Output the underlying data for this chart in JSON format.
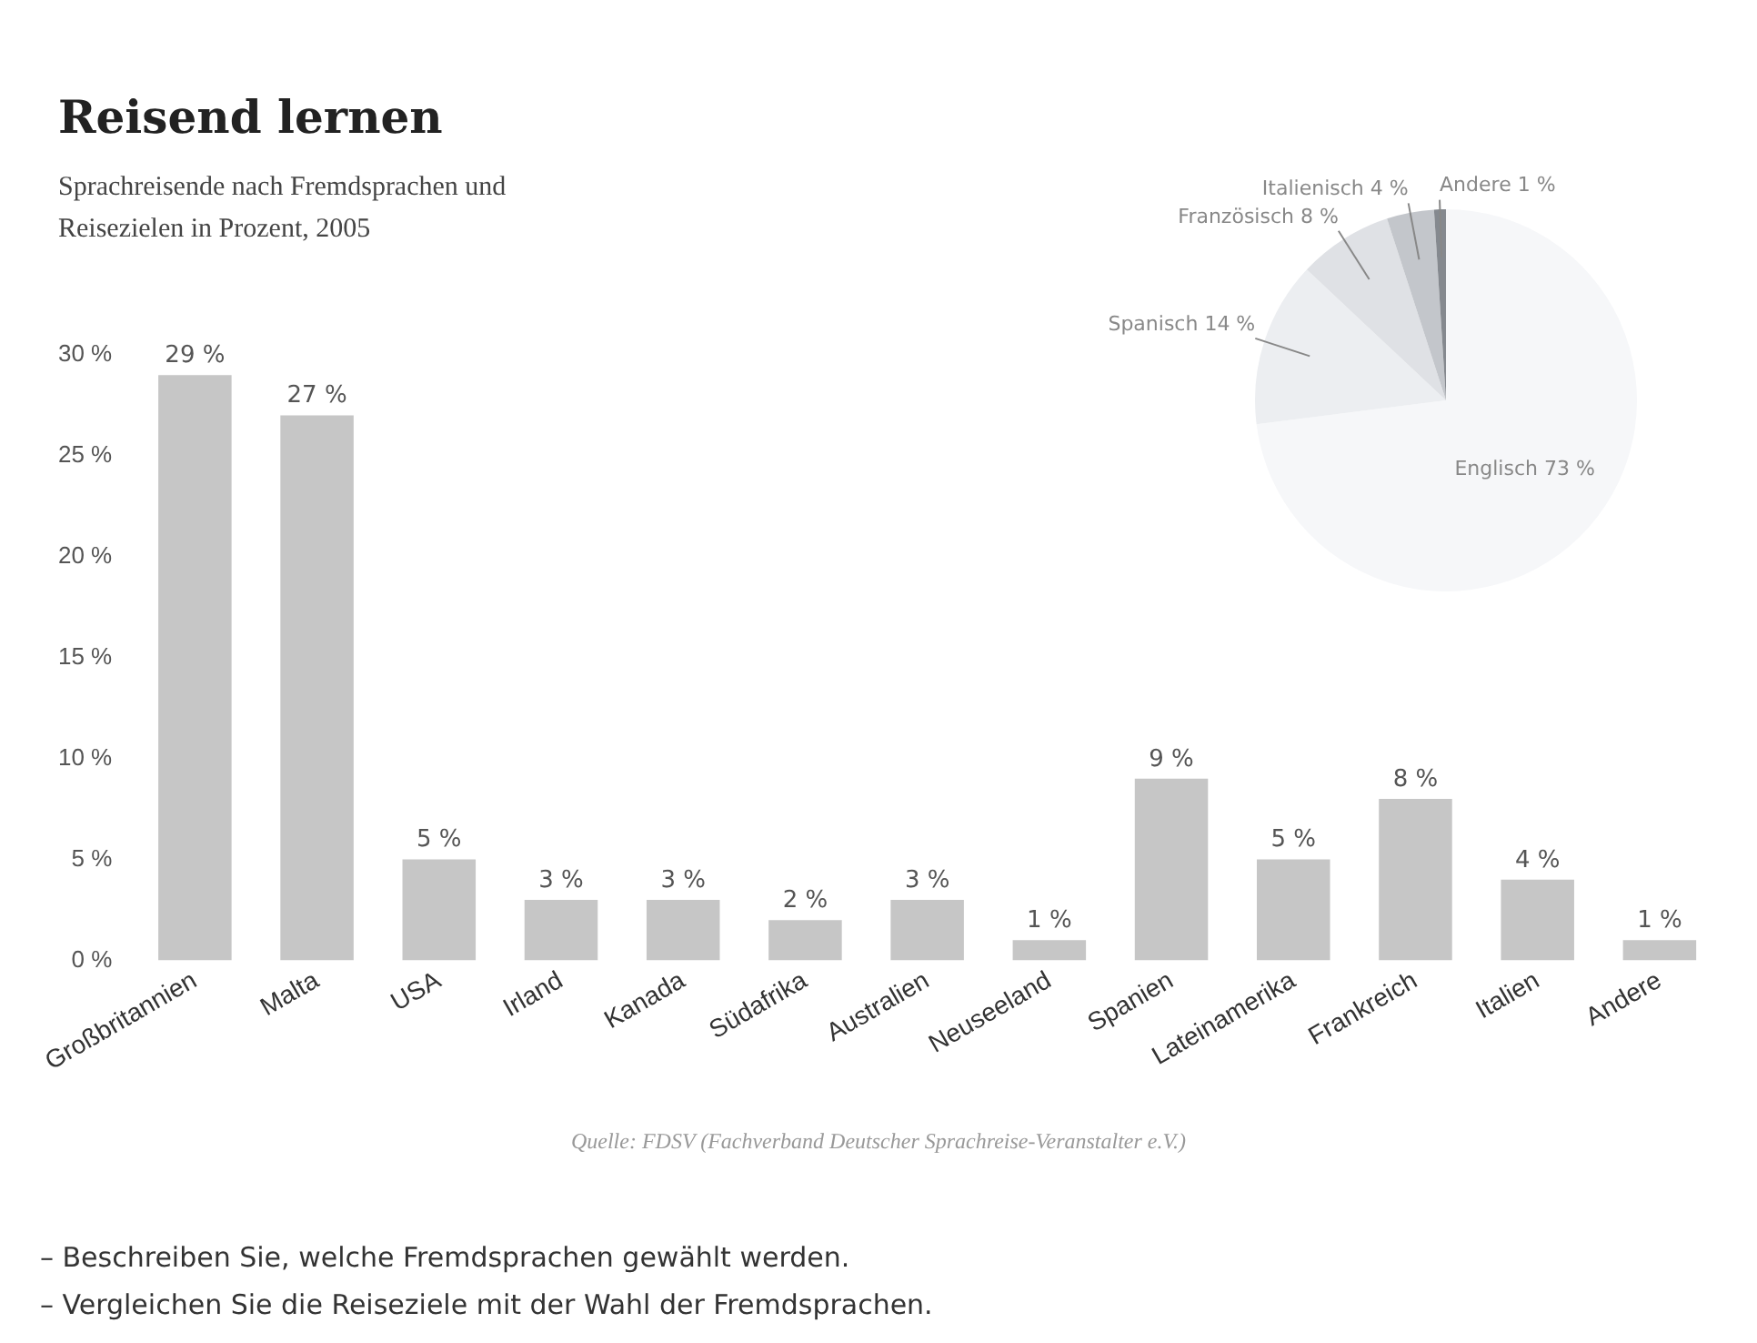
{
  "chart_data": [
    {
      "type": "bar",
      "title": "Reisend lernen",
      "subtitle": "Sprachreisende nach Fremdsprachen und Reisezielen in Prozent, 2005",
      "categories": [
        "Großbritannien",
        "Malta",
        "USA",
        "Irland",
        "Kanada",
        "Südafrika",
        "Australien",
        "Neuseeland",
        "Spanien",
        "Lateinamerika",
        "Frankreich",
        "Italien",
        "Andere"
      ],
      "values": [
        29,
        27,
        5,
        3,
        3,
        2,
        3,
        1,
        9,
        5,
        8,
        4,
        1
      ],
      "value_labels": [
        "29 %",
        "27 %",
        "5 %",
        "3 %",
        "3 %",
        "2 %",
        "3 %",
        "1 %",
        "9 %",
        "5 %",
        "8 %",
        "4 %",
        "1 %"
      ],
      "color": "#c6c6c6",
      "ylim": [
        0,
        30
      ],
      "yticks": [
        {
          "value": 0,
          "label": "0 %"
        },
        {
          "value": 5,
          "label": "5 %"
        },
        {
          "value": 10,
          "label": "10 %"
        },
        {
          "value": 15,
          "label": "15 %"
        },
        {
          "value": 20,
          "label": "20 %"
        },
        {
          "value": 25,
          "label": "25 %"
        },
        {
          "value": 30,
          "label": "30 %"
        }
      ],
      "grid": false,
      "legend": false,
      "annotations": [
        "Quelle: FDSV (Fachverband Deutscher Sprachreise-Veranstalter e.V.)",
        "– Beschreiben Sie, welche Fremdsprachen gewählt werden.",
        "– Vergleichen Sie die Reiseziele mit der Wahl der Fremdsprachen."
      ]
    },
    {
      "type": "pie",
      "categories": [
        "Englisch",
        "Spanisch",
        "Französisch",
        "Italienisch",
        "Andere"
      ],
      "values": [
        73,
        14,
        8,
        4,
        1
      ],
      "value_labels": [
        "73 %",
        "14 %",
        "8 %",
        "4 %",
        "1 %"
      ],
      "colors": [
        "#f6f7f9",
        "#eceef1",
        "#dfe1e5",
        "#c3c6cb",
        "#85898f"
      ],
      "legend": false
    }
  ]
}
